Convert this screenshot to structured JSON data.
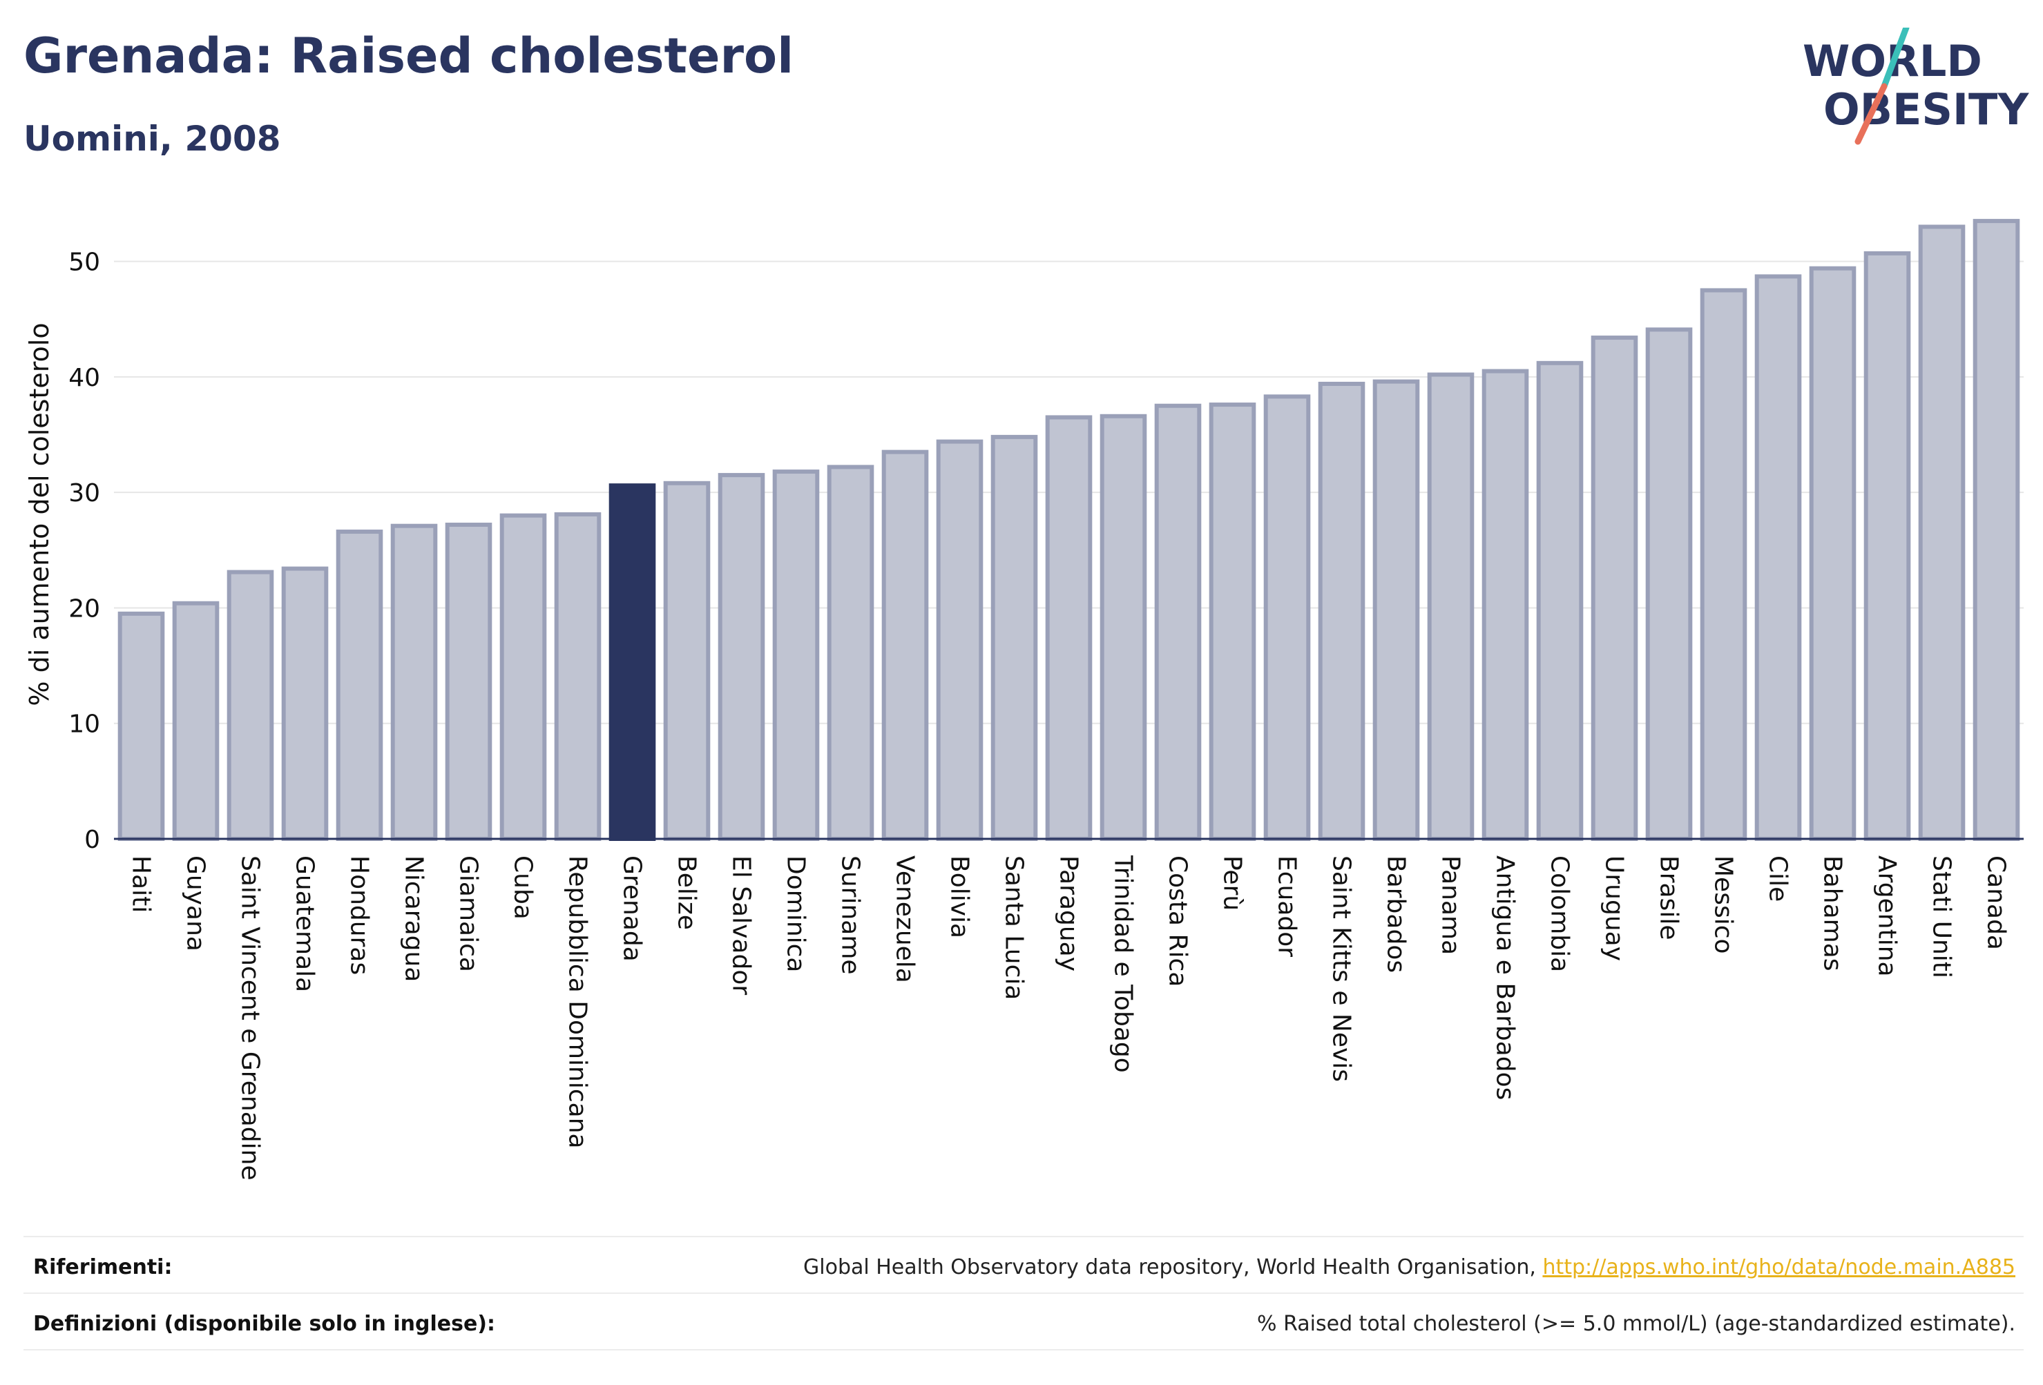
{
  "header": {
    "title": "Grenada: Raised cholesterol",
    "subtitle": "Uomini, 2008"
  },
  "logo": {
    "line1": "WORLD",
    "line2": "OBESITY"
  },
  "colors": {
    "bar": "#c0c4d2",
    "bar_border": "#9aa0b8",
    "highlight": "#2a3560",
    "text": "#2a3560",
    "grid": "#e6e6e6",
    "link": "#e8b21a",
    "logo_teal": "#3bbfb9",
    "logo_coral": "#e8705a"
  },
  "chart_data": {
    "type": "bar",
    "ylabel": "% di aumento del colesterolo",
    "ylim": [
      0,
      55
    ],
    "yticks": [
      0,
      10,
      20,
      30,
      40,
      50
    ],
    "grid": true,
    "highlight": "Grenada",
    "categories": [
      "Haiti",
      "Guyana",
      "Saint Vincent e Grenadine",
      "Guatemala",
      "Honduras",
      "Nicaragua",
      "Giamaica",
      "Cuba",
      "Repubblica Dominicana",
      "Grenada",
      "Belize",
      "El Salvador",
      "Dominica",
      "Suriname",
      "Venezuela",
      "Bolivia",
      "Santa Lucia",
      "Paraguay",
      "Trinidad e Tobago",
      "Costa Rica",
      "Perù",
      "Ecuador",
      "Saint Kitts e Nevis",
      "Barbados",
      "Panama",
      "Antigua e Barbados",
      "Colombia",
      "Uruguay",
      "Brasile",
      "Messico",
      "Cile",
      "Bahamas",
      "Argentina",
      "Stati Uniti",
      "Canada"
    ],
    "values": [
      19.5,
      20.4,
      23.1,
      23.4,
      26.6,
      27.1,
      27.2,
      28.0,
      28.1,
      30.6,
      30.8,
      31.5,
      31.8,
      32.2,
      33.5,
      34.4,
      34.8,
      36.5,
      36.6,
      37.5,
      37.6,
      38.3,
      39.4,
      39.6,
      40.2,
      40.5,
      41.2,
      43.4,
      44.1,
      47.5,
      48.7,
      49.4,
      50.7,
      53.0,
      53.5
    ]
  },
  "footer": {
    "references_label": "Riferimenti:",
    "references_text": "Global Health Observatory data repository, World Health Organisation, ",
    "references_link": "http://apps.who.int/gho/data/node.main.A885",
    "definitions_label": "Definizioni (disponibile solo in inglese):",
    "definitions_text": "% Raised total cholesterol (>= 5.0 mmol/L) (age-standardized estimate)."
  }
}
